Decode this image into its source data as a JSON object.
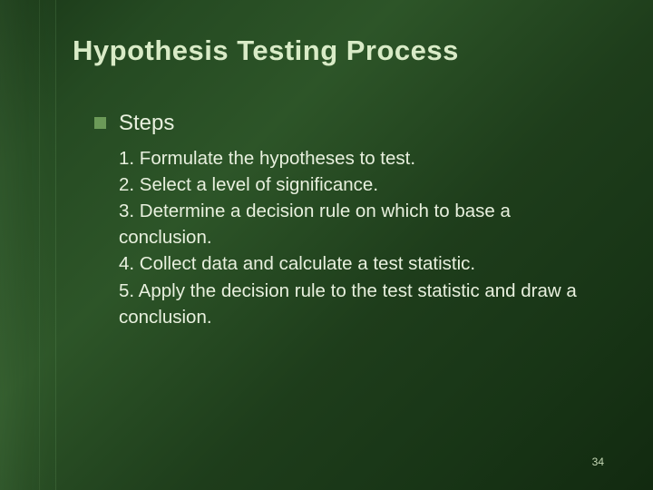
{
  "slide": {
    "title": "Hypothesis Testing Process",
    "subhead": "Steps",
    "steps": [
      "1. Formulate the hypotheses to test.",
      "2. Select a level of significance.",
      "3. Determine a decision rule on which to base a conclusion.",
      "4. Collect data and calculate a test statistic.",
      "5. Apply the decision rule to the test statistic and draw a conclusion."
    ],
    "page_number": "34"
  },
  "style": {
    "background_gradient_start": "#1a3818",
    "background_gradient_end": "#122a10",
    "title_color": "#d9ebc7",
    "text_color": "#e8f0de",
    "bullet_color": "#6b9a58",
    "title_fontsize": 31,
    "subhead_fontsize": 24,
    "body_fontsize": 20.5,
    "pagenum_fontsize": 12
  }
}
